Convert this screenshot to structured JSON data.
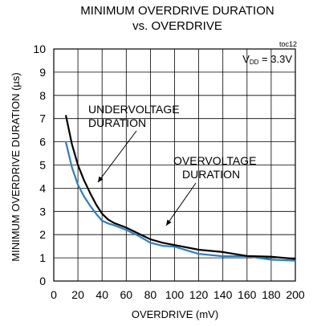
{
  "chart_data": {
    "type": "line",
    "title": "MINIMUM OVERDRIVE DURATION",
    "subtitle": "vs. OVERDRIVE",
    "xlabel": "OVERDRIVE (mV)",
    "ylabel": "MINIMUM OVERDRIVE DURATION (µs)",
    "xlim": [
      0,
      200
    ],
    "ylim": [
      0,
      10
    ],
    "x_ticks": [
      "0",
      "20",
      "40",
      "60",
      "80",
      "100",
      "120",
      "140",
      "160",
      "180",
      "200"
    ],
    "y_ticks": [
      "0",
      "1",
      "2",
      "3",
      "4",
      "5",
      "6",
      "7",
      "8",
      "9",
      "10"
    ],
    "grid": true,
    "figure_tag": "toc12",
    "condition": {
      "prefix": "V",
      "sub": "DD",
      "suffix": " = 3.3V"
    },
    "annotations": [
      {
        "lines": [
          "UNDERVOLTAGE",
          "DURATION"
        ],
        "series": "undervoltage"
      },
      {
        "lines": [
          "OVERVOLTAGE",
          "DURATION"
        ],
        "series": "overvoltage"
      }
    ],
    "series": [
      {
        "key": "undervoltage",
        "color": "#000000",
        "x": [
          10,
          15,
          20,
          25,
          30,
          35,
          40,
          45,
          50,
          60,
          70,
          80,
          90,
          100,
          120,
          140,
          160,
          180,
          200
        ],
        "y": [
          7.15,
          5.9,
          5.0,
          4.35,
          3.8,
          3.3,
          2.9,
          2.65,
          2.5,
          2.3,
          2.05,
          1.8,
          1.65,
          1.55,
          1.35,
          1.25,
          1.08,
          1.05,
          0.95
        ]
      },
      {
        "key": "overvoltage",
        "color": "#2a7fc4",
        "x": [
          10,
          15,
          20,
          25,
          30,
          35,
          40,
          45,
          50,
          60,
          70,
          80,
          90,
          100,
          120,
          140,
          160,
          180,
          200
        ],
        "y": [
          6.0,
          4.9,
          4.15,
          3.65,
          3.25,
          2.9,
          2.6,
          2.48,
          2.4,
          2.2,
          1.95,
          1.65,
          1.52,
          1.48,
          1.17,
          1.07,
          1.07,
          0.92,
          0.88
        ]
      }
    ]
  }
}
